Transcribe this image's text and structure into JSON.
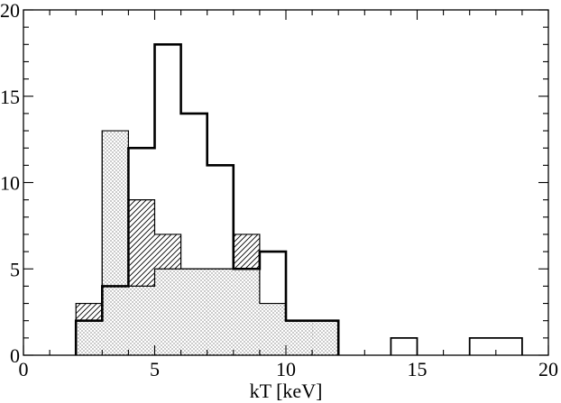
{
  "chart_data": {
    "type": "histogram",
    "xlabel": "kT [keV]",
    "ylabel": "",
    "xlim": [
      0,
      20
    ],
    "ylim": [
      0,
      20
    ],
    "x_ticks": [
      "0",
      "5",
      "10",
      "15",
      "20"
    ],
    "y_ticks": [
      "0",
      "5",
      "10",
      "15",
      "20"
    ],
    "bin_width": 1,
    "series": [
      {
        "style": "diagonal-hatch",
        "color": "#000000",
        "bins": [
          {
            "x0": 2,
            "x1": 3,
            "count": 3
          },
          {
            "x0": 3,
            "x1": 4,
            "count": 13
          },
          {
            "x0": 4,
            "x1": 5,
            "count": 9
          },
          {
            "x0": 5,
            "x1": 6,
            "count": 7
          },
          {
            "x0": 6,
            "x1": 7,
            "count": 5
          },
          {
            "x0": 7,
            "x1": 8,
            "count": 5
          },
          {
            "x0": 8,
            "x1": 9,
            "count": 7
          },
          {
            "x0": 9,
            "x1": 10,
            "count": 3
          },
          {
            "x0": 10,
            "x1": 11,
            "count": 1
          },
          {
            "x0": 11,
            "x1": 12,
            "count": 2
          }
        ]
      },
      {
        "style": "dotted-fill",
        "color": "#000000",
        "bins": [
          {
            "x0": 2,
            "x1": 3,
            "count": 2
          },
          {
            "x0": 3,
            "x1": 4,
            "count": 13
          },
          {
            "x0": 4,
            "x1": 5,
            "count": 4
          },
          {
            "x0": 5,
            "x1": 6,
            "count": 5
          },
          {
            "x0": 6,
            "x1": 7,
            "count": 5
          },
          {
            "x0": 7,
            "x1": 8,
            "count": 5
          },
          {
            "x0": 8,
            "x1": 9,
            "count": 5
          },
          {
            "x0": 9,
            "x1": 10,
            "count": 3
          },
          {
            "x0": 10,
            "x1": 11,
            "count": 2
          },
          {
            "x0": 11,
            "x1": 12,
            "count": 2
          }
        ]
      },
      {
        "style": "thick-outline",
        "color": "#000000",
        "bins": [
          {
            "x0": 2,
            "x1": 3,
            "count": 2
          },
          {
            "x0": 3,
            "x1": 4,
            "count": 4
          },
          {
            "x0": 4,
            "x1": 5,
            "count": 12
          },
          {
            "x0": 5,
            "x1": 6,
            "count": 18
          },
          {
            "x0": 6,
            "x1": 7,
            "count": 14
          },
          {
            "x0": 7,
            "x1": 8,
            "count": 11
          },
          {
            "x0": 8,
            "x1": 9,
            "count": 5
          },
          {
            "x0": 9,
            "x1": 10,
            "count": 6
          },
          {
            "x0": 10,
            "x1": 11,
            "count": 2
          },
          {
            "x0": 11,
            "x1": 12,
            "count": 2
          }
        ]
      },
      {
        "style": "thin-outline",
        "color": "#000000",
        "bins": [
          {
            "x0": 14,
            "x1": 15,
            "count": 1
          },
          {
            "x0": 17,
            "x1": 18,
            "count": 1
          },
          {
            "x0": 18,
            "x1": 19,
            "count": 1
          }
        ]
      }
    ]
  }
}
